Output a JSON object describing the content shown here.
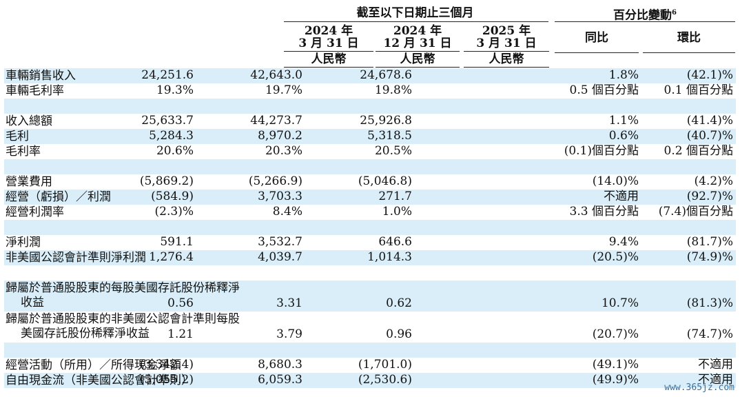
{
  "header": {
    "group_period": "截至以下日期止三個月",
    "group_change": "百分比變動",
    "footnote": "6",
    "columns": [
      {
        "year": "2024 年",
        "date": "3 月 31 日",
        "unit": "人民幣"
      },
      {
        "year": "2024 年",
        "date": "12 月 31 日",
        "unit": "人民幣"
      },
      {
        "year": "2025 年",
        "date": "3 月 31 日",
        "unit": "人民幣"
      }
    ],
    "yoy": "同比",
    "qoq": "環比"
  },
  "rows": [
    {
      "label": "車輛銷售收入",
      "v": [
        "24,251.6",
        "42,643.0",
        "24,678.6",
        "1.8%",
        "(42.1)%"
      ]
    },
    {
      "label": "車輛毛利率",
      "v": [
        "19.3%",
        "19.7%",
        "19.8%",
        "0.5 個百分點",
        "0.1 個百分點"
      ]
    },
    {
      "label": "收入總額",
      "v": [
        "25,633.7",
        "44,273.7",
        "25,926.8",
        "1.1%",
        "(41.4)%"
      ]
    },
    {
      "label": "毛利",
      "v": [
        "5,284.3",
        "8,970.2",
        "5,318.5",
        "0.6%",
        "(40.7)%"
      ]
    },
    {
      "label": "毛利率",
      "v": [
        "20.6%",
        "20.3%",
        "20.5%",
        "(0.1)個百分點",
        "0.2 個百分點"
      ]
    },
    {
      "label": "營業費用",
      "v": [
        "(5,869.2)",
        "(5,266.9)",
        "(5,046.8)",
        "(14.0)%",
        "(4.2)%"
      ]
    },
    {
      "label": "經營（虧損）／利潤",
      "v": [
        "(584.9)",
        "3,703.3",
        "271.7",
        "不適用",
        "(92.7)%"
      ]
    },
    {
      "label": "經營利潤率",
      "v": [
        "(2.3)%",
        "8.4%",
        "1.0%",
        "3.3 個百分點",
        "(7.4)個百分點"
      ]
    },
    {
      "label": "淨利潤",
      "v": [
        "591.1",
        "3,532.7",
        "646.6",
        "9.4%",
        "(81.7)%"
      ]
    },
    {
      "label": "非美國公認會計準則淨利潤",
      "v": [
        "1,276.4",
        "4,039.7",
        "1,014.3",
        "(20.5)%",
        "(74.9)%"
      ]
    },
    {
      "label1": "歸屬於普通股股東的每股美國存託股份稀釋淨",
      "label2": "收益",
      "v": [
        "0.56",
        "3.31",
        "0.62",
        "10.7%",
        "(81.3)%"
      ]
    },
    {
      "label1": "歸屬於普通股股東的非美國公認會計準則每股",
      "label2": "美國存託股份稀釋淨收益",
      "v": [
        "1.21",
        "3.79",
        "0.96",
        "(20.7)%",
        "(74.7)%"
      ]
    },
    {
      "label": "經營活動（所用）／所得現金淨額",
      "v": [
        "(3,342.4)",
        "8,680.3",
        "(1,701.0)",
        "(49.1)%",
        "不適用"
      ]
    },
    {
      "label": "自由現金流（非美國公認會計準則）",
      "v": [
        "(5,055.2)",
        "6,059.3",
        "(2,530.6)",
        "(49.9)%",
        "不適用"
      ]
    }
  ],
  "watermark": "www.365jz.com"
}
